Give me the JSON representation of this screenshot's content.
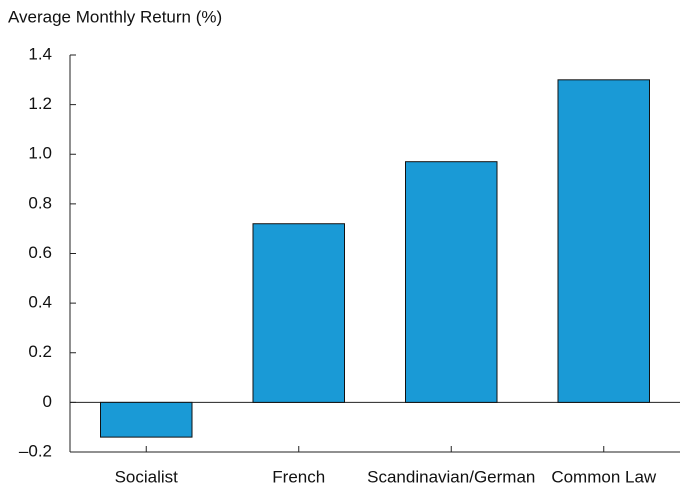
{
  "chart_data": {
    "type": "bar",
    "title": "Average Monthly Return (%)",
    "categories": [
      "Socialist",
      "French",
      "Scandinavian/German",
      "Common Law"
    ],
    "values": [
      -0.14,
      0.72,
      0.97,
      1.3
    ],
    "color": "#1a9ad6",
    "ylim": [
      -0.2,
      1.4
    ],
    "yticks": [
      {
        "value": -0.2,
        "label": "–0.2"
      },
      0,
      0.2,
      0.4,
      0.6,
      0.8,
      {
        "value": 1,
        "label": "1.0"
      },
      1.2,
      1.4
    ],
    "grid": false
  }
}
